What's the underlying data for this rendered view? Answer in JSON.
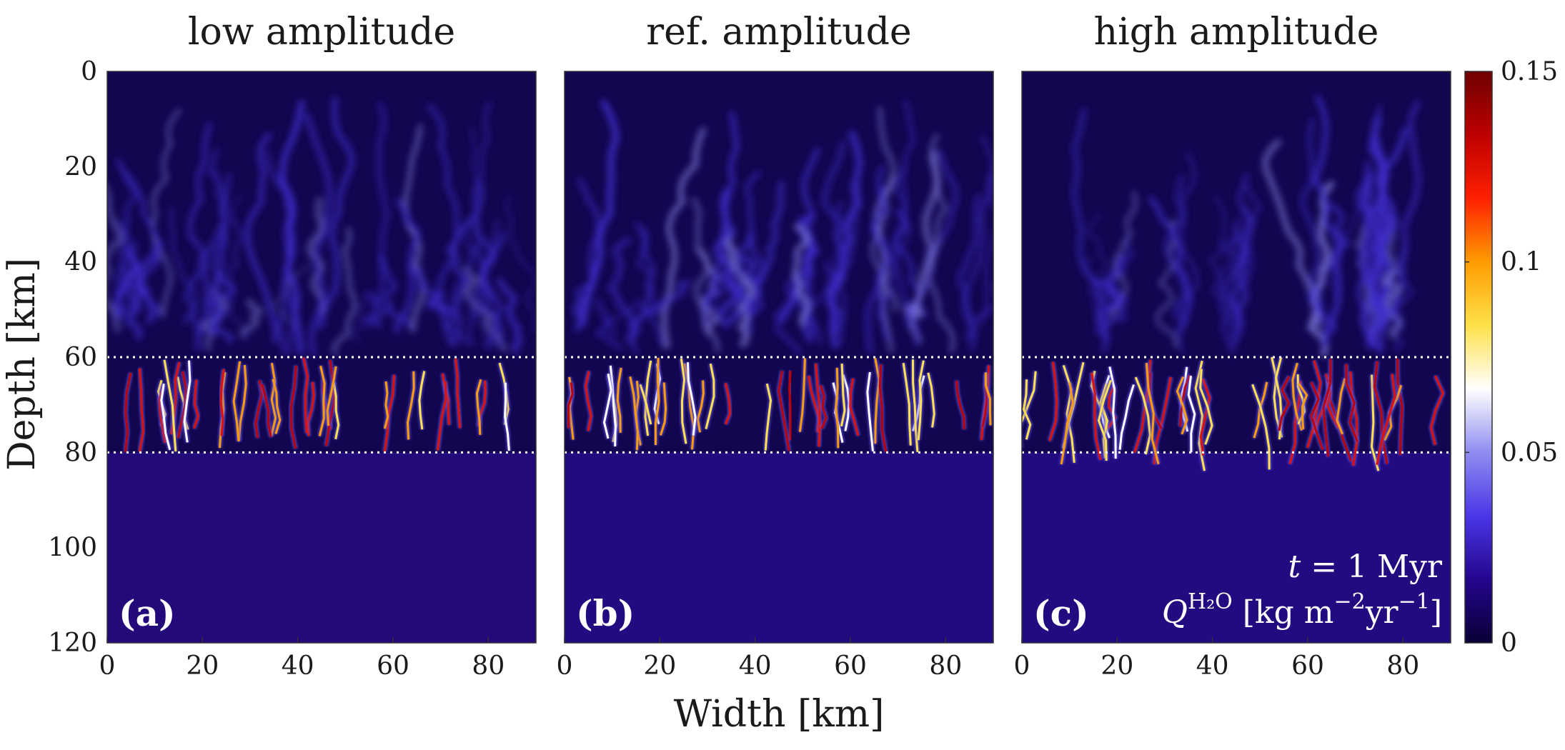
{
  "chart_data": {
    "type": "heatmap",
    "variable_label": "Q^{H2O} [kg m^-2 yr^-1]",
    "xlabel": "Width [km]",
    "ylabel": "Depth [km]",
    "xlim": [
      0,
      90
    ],
    "ylim": [
      0,
      120
    ],
    "y_reversed": true,
    "x_ticks": [
      "0",
      "20",
      "40",
      "60",
      "80"
    ],
    "y_ticks": [
      "0",
      "20",
      "40",
      "60",
      "80",
      "100",
      "120"
    ],
    "reference_lines_depth_km": [
      60,
      80
    ],
    "colorbar": {
      "min": 0,
      "max": 0.15,
      "ticks": [
        "0",
        "0.05",
        "0.1",
        "0.15"
      ],
      "colormap": [
        "#0a0036",
        "#24058e",
        "#4a36e6",
        "#8f8df0",
        "#ffffff",
        "#ffe14a",
        "#ff9c00",
        "#ff2000",
        "#bd0000",
        "#6e0000"
      ]
    },
    "panels": [
      {
        "id": "a",
        "label": "(a)",
        "title": "low amplitude"
      },
      {
        "id": "b",
        "label": "(b)",
        "title": "ref. amplitude"
      },
      {
        "id": "c",
        "label": "(c)",
        "title": "high amplitude"
      }
    ],
    "annotation": {
      "time_var": "t",
      "time_text": "= 1 Myr",
      "q_symbol": "Q",
      "q_sup": "H₂O",
      "unit_a": "[kg m",
      "unit_exp1": "−2",
      "unit_b": "yr",
      "unit_exp2": "−1",
      "unit_c": "]"
    }
  }
}
